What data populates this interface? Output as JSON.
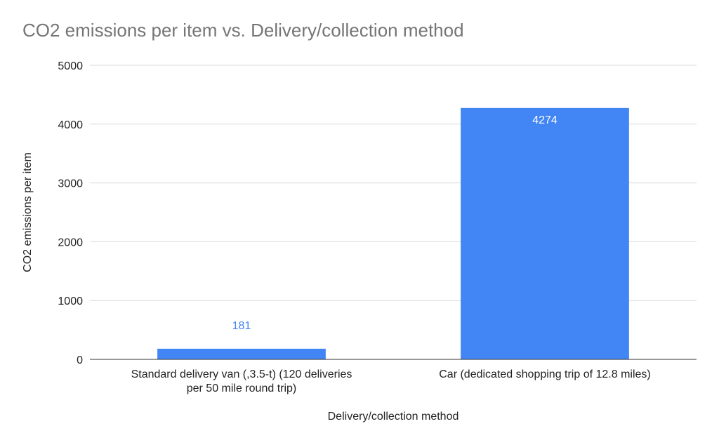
{
  "chart_data": {
    "type": "bar",
    "title": "CO2 emissions per item vs. Delivery/collection method",
    "xlabel": "Delivery/collection method",
    "ylabel": "CO2 emissions per item",
    "categories": [
      [
        "Standard delivery van (,3.5-t) (120 deliveries",
        "per 50 mile round trip)"
      ],
      [
        "Car (dedicated shopping trip of 12.8 miles)"
      ]
    ],
    "values": [
      181,
      4274
    ],
    "data_labels": [
      "181",
      "4274"
    ],
    "yticks": [
      "0",
      "1000",
      "2000",
      "3000",
      "4000",
      "5000"
    ],
    "ylim": [
      0,
      5000
    ],
    "grid": true,
    "colors": {
      "bar": "#4285f4",
      "label_outside": "#4285f4",
      "label_inside": "#ffffff",
      "grid": "#d9d9d9",
      "axis": "#333333"
    }
  }
}
